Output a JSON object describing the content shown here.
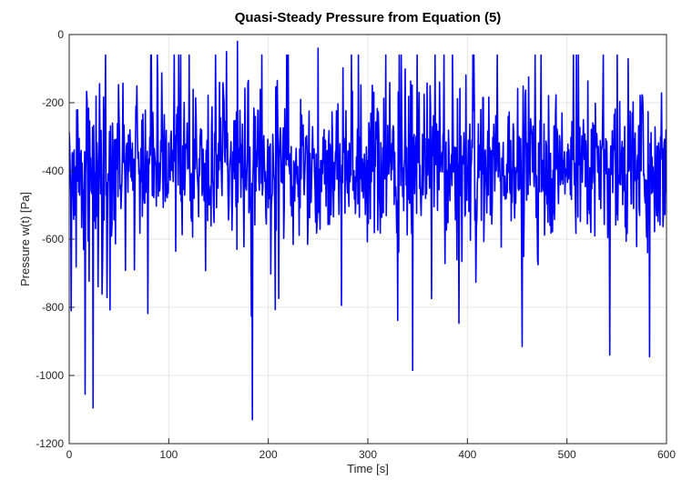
{
  "chart_data": {
    "type": "line",
    "title": "Quasi-Steady Pressure from Equation (5)",
    "xlabel": "Time [s]",
    "ylabel": "Pressure w(t) [Pa]",
    "xlim": [
      0,
      600
    ],
    "ylim": [
      -1200,
      0
    ],
    "xticks": [
      0,
      100,
      200,
      300,
      400,
      500,
      600
    ],
    "yticks": [
      0,
      -200,
      -400,
      -600,
      -800,
      -1000,
      -1200
    ],
    "xtick_labels": [
      "0",
      "100",
      "200",
      "300",
      "400",
      "500",
      "600"
    ],
    "ytick_labels": [
      "0",
      "-200",
      "-400",
      "-600",
      "-800",
      "-1000",
      "-1200"
    ],
    "grid": true,
    "series": [
      {
        "color": "#0000ff",
        "sample_interval_s": 0.5,
        "mean": -380,
        "min": -1130,
        "max": -20,
        "notable_points": [
          {
            "x": 2,
            "y": -810
          },
          {
            "x": 16,
            "y": -1055
          },
          {
            "x": 24,
            "y": -1095
          },
          {
            "x": 158,
            "y": -50
          },
          {
            "x": 169,
            "y": -20
          },
          {
            "x": 184,
            "y": -1130
          },
          {
            "x": 250,
            "y": -40
          },
          {
            "x": 345,
            "y": -985
          },
          {
            "x": 455,
            "y": -915
          },
          {
            "x": 543,
            "y": -940
          },
          {
            "x": 583,
            "y": -945
          }
        ]
      }
    ]
  }
}
